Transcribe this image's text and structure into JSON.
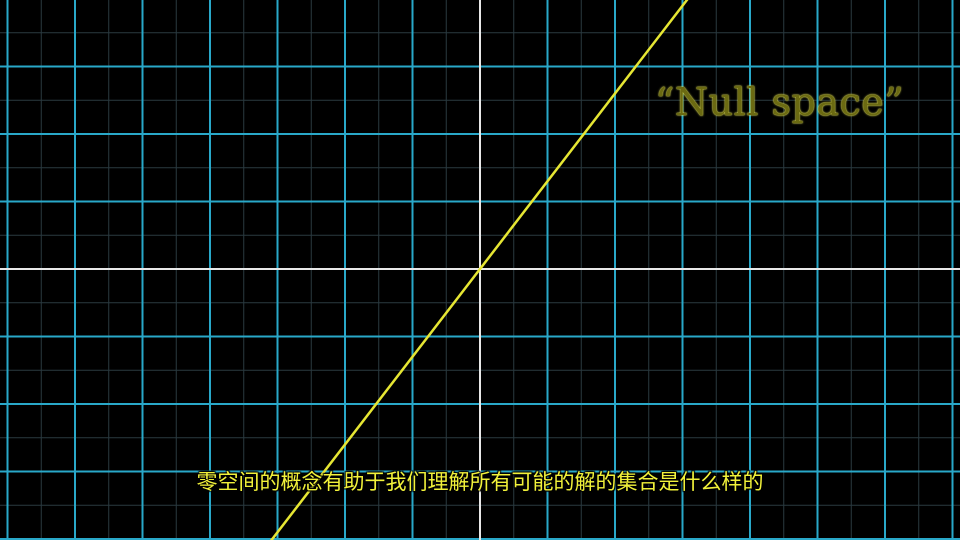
{
  "scene": {
    "label": "“Null space”",
    "subtitle": "零空间的概念有助于我们理解所有可能的解的集合是什么样的",
    "slope": 1.3
  },
  "colors": {
    "background": "#000000",
    "grid_major": "#29a8c9",
    "grid_minor": "#2a3a40",
    "axis": "#e8e8e8",
    "line": "#e6e633",
    "subtitle": "#f2f23a",
    "label": "#6b6a12"
  }
}
